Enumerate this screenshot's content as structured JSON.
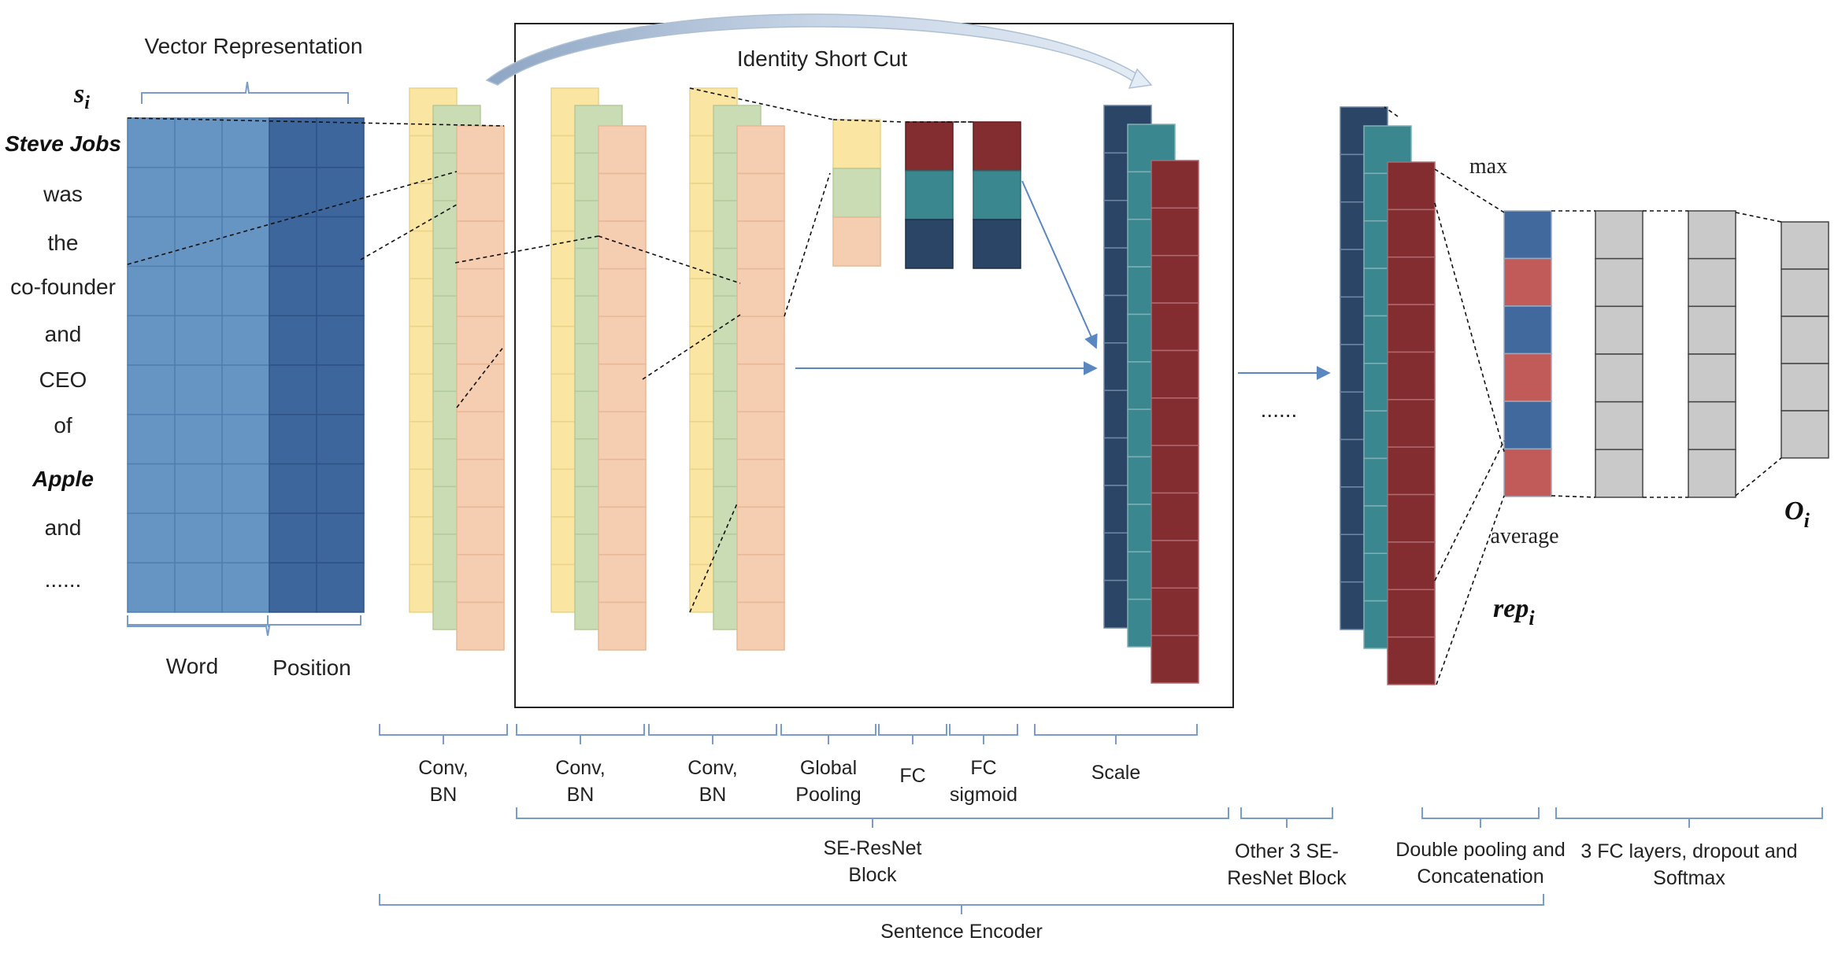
{
  "diagram": {
    "tokens": {
      "si": "s",
      "si_sub": "i",
      "words": [
        {
          "text": "Steve Jobs",
          "bold": true
        },
        {
          "text": "was",
          "bold": false
        },
        {
          "text": "the",
          "bold": false
        },
        {
          "text": "co-founder",
          "bold": false
        },
        {
          "text": "and",
          "bold": false
        },
        {
          "text": "CEO",
          "bold": false
        },
        {
          "text": "of",
          "bold": false
        },
        {
          "text": "Apple",
          "bold": true
        },
        {
          "text": "and",
          "bold": false
        },
        {
          "text": "......",
          "bold": false
        }
      ]
    },
    "vector_representation": "Vector Representation",
    "word_label": "Word",
    "position_label": "Position",
    "identity_shortcut": "Identity Short Cut",
    "ellipsis": "......",
    "pool_max": "max",
    "pool_average": "average",
    "rep_main": "rep",
    "rep_sub": "i",
    "out_main": "O",
    "out_sub": "i",
    "brackets": {
      "conv_bn_1": [
        "Conv,",
        "BN"
      ],
      "conv_bn_2": [
        "Conv,",
        "BN"
      ],
      "conv_bn_3": [
        "Conv,",
        "BN"
      ],
      "global_pooling": [
        "Global",
        "Pooling"
      ],
      "fc": [
        "FC"
      ],
      "fc_sigmoid": [
        "FC",
        "sigmoid"
      ],
      "scale": [
        "Scale"
      ],
      "se_resnet_block": [
        "SE-ResNet",
        "Block"
      ],
      "other_blocks": [
        "Other 3 SE-",
        "ResNet Block"
      ],
      "double_pooling": [
        "Double pooling and",
        "Concatenation"
      ],
      "fc_layers": [
        "3 FC layers, dropout and",
        "Softmax"
      ],
      "sentence_encoder": [
        "Sentence Encoder"
      ]
    },
    "colors": {
      "word_matrix": "#6795c3",
      "position_matrix": "#3d679c",
      "yellow": "#fbe5a2",
      "green": "#c9dcb4",
      "peach": "#f5cdb0",
      "navy": "#2b4566",
      "teal": "#3b878f",
      "maroon": "#832d31",
      "rep_blue": "#41699d",
      "rep_red": "#c05b59",
      "gray": "#c9c9c9",
      "bracket": "#7a9cc9",
      "arrow": "#5b87c0"
    }
  }
}
